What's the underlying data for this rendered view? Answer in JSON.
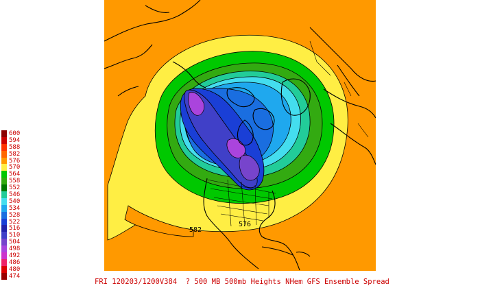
{
  "caption": "FRI 120203/1200V384  ? 500 MB 500mb Heights NHem GFS Ensemble Spread",
  "legend": [
    {
      "label": "600",
      "color": "#8b0000"
    },
    {
      "label": "594",
      "color": "#cc0000"
    },
    {
      "label": "588",
      "color": "#ff3300"
    },
    {
      "label": "582",
      "color": "#ff6600"
    },
    {
      "label": "576",
      "color": "#ff9900"
    },
    {
      "label": "570",
      "color": "#ffee44"
    },
    {
      "label": "564",
      "color": "#00c800"
    },
    {
      "label": "558",
      "color": "#33aa11"
    },
    {
      "label": "552",
      "color": "#007700"
    },
    {
      "label": "546",
      "color": "#22cc99"
    },
    {
      "label": "540",
      "color": "#44ddee"
    },
    {
      "label": "534",
      "color": "#1fa8ee"
    },
    {
      "label": "528",
      "color": "#1a6ee0"
    },
    {
      "label": "522",
      "color": "#1a3fd6"
    },
    {
      "label": "516",
      "color": "#2222aa"
    },
    {
      "label": "510",
      "color": "#4040c8"
    },
    {
      "label": "504",
      "color": "#7744cc"
    },
    {
      "label": "498",
      "color": "#aa44dd"
    },
    {
      "label": "492",
      "color": "#cc33cc"
    },
    {
      "label": "486",
      "color": "#ee2266"
    },
    {
      "label": "480",
      "color": "#dd0000"
    },
    {
      "label": "474",
      "color": "#990000"
    }
  ],
  "contour_labels": [
    {
      "text": "582",
      "id": "c582"
    },
    {
      "text": "576",
      "id": "c576"
    }
  ]
}
